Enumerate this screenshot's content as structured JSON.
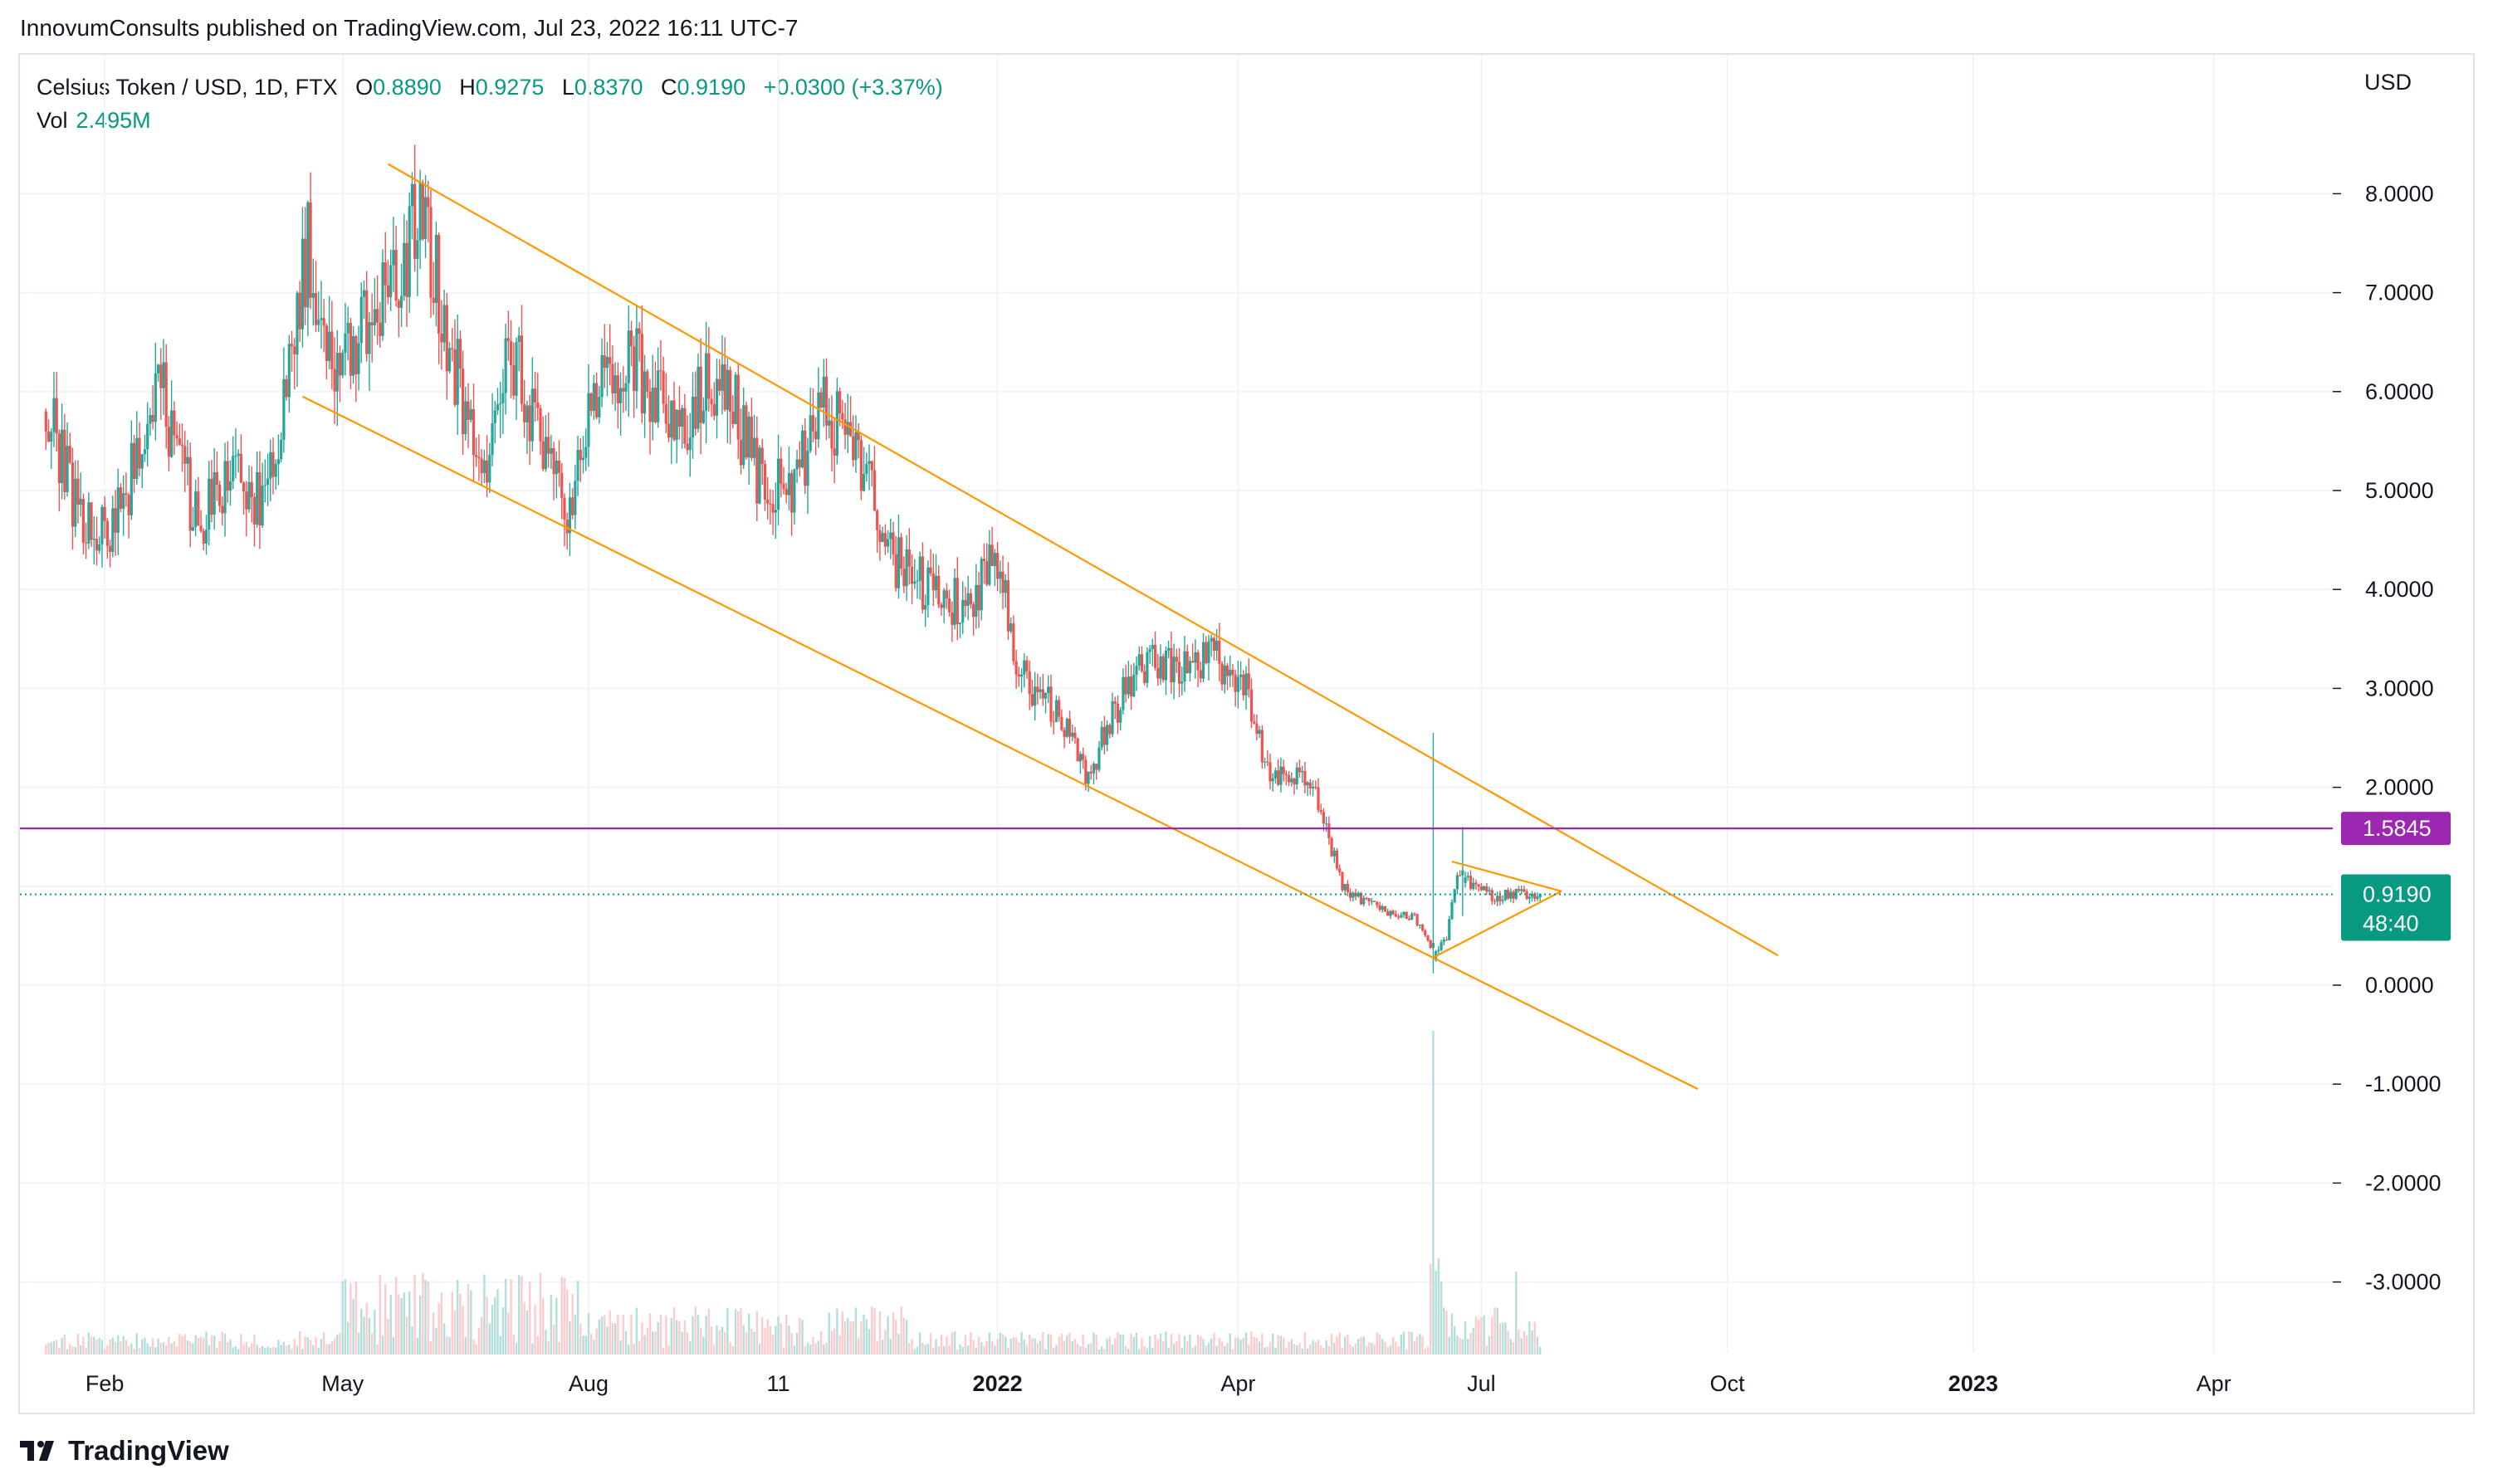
{
  "header": {
    "published_by": "InnovumConsults published on TradingView.com, Jul 23, 2022 16:11 UTC-7"
  },
  "legend": {
    "symbol": "Celsius Token / USD, 1D, FTX",
    "o_label": "O",
    "o": "0.8890",
    "h_label": "H",
    "h": "0.9275",
    "l_label": "L",
    "l": "0.8370",
    "c_label": "C",
    "c": "0.9190",
    "change": "+0.0300 (+3.37%)",
    "vol_label": "Vol",
    "vol": "2.495M"
  },
  "currency": "USD",
  "price_axis": [
    "8.0000",
    "7.0000",
    "6.0000",
    "5.0000",
    "4.0000",
    "3.0000",
    "2.0000",
    "0.0000",
    "-1.0000",
    "-2.0000",
    "-3.0000"
  ],
  "time_axis": [
    {
      "label": "Feb",
      "bold": false
    },
    {
      "label": "May",
      "bold": false
    },
    {
      "label": "Aug",
      "bold": false
    },
    {
      "label": "11",
      "bold": false
    },
    {
      "label": "2022",
      "bold": true
    },
    {
      "label": "Apr",
      "bold": false
    },
    {
      "label": "Jul",
      "bold": false
    },
    {
      "label": "Oct",
      "bold": false
    },
    {
      "label": "2023",
      "bold": true
    },
    {
      "label": "Apr",
      "bold": false
    }
  ],
  "badges": {
    "level": "1.5845",
    "last_price": "0.9190",
    "countdown": "48:40"
  },
  "colors": {
    "up": "#26a69a",
    "down": "#ef5350",
    "trendline": "#ff9800",
    "level": "#9c27b0",
    "badge_last": "#089981",
    "grid": "#f0f3fa"
  },
  "chart_data": {
    "type": "candlestick",
    "title": "Celsius Token / USD, 1D, FTX",
    "ylabel": "USD",
    "ylim": [
      -3.7,
      8.6
    ],
    "xlim": [
      "2021-01-04",
      "2023-04-30"
    ],
    "horizontal_level": 1.5845,
    "last_close": 0.919,
    "price_path": [
      {
        "date": "2021-01-10",
        "price": 5.8
      },
      {
        "date": "2021-01-22",
        "price": 4.8
      },
      {
        "date": "2021-02-01",
        "price": 4.5
      },
      {
        "date": "2021-02-12",
        "price": 5.2
      },
      {
        "date": "2021-02-22",
        "price": 6.0
      },
      {
        "date": "2021-03-08",
        "price": 4.6
      },
      {
        "date": "2021-03-20",
        "price": 5.2
      },
      {
        "date": "2021-04-01",
        "price": 4.8
      },
      {
        "date": "2021-04-10",
        "price": 6.0
      },
      {
        "date": "2021-04-18",
        "price": 7.5
      },
      {
        "date": "2021-04-28",
        "price": 6.2
      },
      {
        "date": "2021-05-06",
        "price": 6.6
      },
      {
        "date": "2021-05-18",
        "price": 6.9
      },
      {
        "date": "2021-05-30",
        "price": 7.8
      },
      {
        "date": "2021-06-10",
        "price": 6.5
      },
      {
        "date": "2021-06-22",
        "price": 5.0
      },
      {
        "date": "2021-07-02",
        "price": 6.6
      },
      {
        "date": "2021-07-12",
        "price": 5.6
      },
      {
        "date": "2021-07-24",
        "price": 4.8
      },
      {
        "date": "2021-08-04",
        "price": 6.0
      },
      {
        "date": "2021-08-18",
        "price": 6.3
      },
      {
        "date": "2021-09-04",
        "price": 5.6
      },
      {
        "date": "2021-09-20",
        "price": 6.2
      },
      {
        "date": "2021-10-04",
        "price": 5.1
      },
      {
        "date": "2021-10-16",
        "price": 5.0
      },
      {
        "date": "2021-10-28",
        "price": 5.8
      },
      {
        "date": "2021-11-08",
        "price": 5.6
      },
      {
        "date": "2021-11-22",
        "price": 4.3
      },
      {
        "date": "2021-12-06",
        "price": 4.0
      },
      {
        "date": "2021-12-20",
        "price": 3.8
      },
      {
        "date": "2022-01-01",
        "price": 4.3
      },
      {
        "date": "2022-01-08",
        "price": 3.2
      },
      {
        "date": "2022-01-22",
        "price": 2.8
      },
      {
        "date": "2022-02-04",
        "price": 2.1
      },
      {
        "date": "2022-02-14",
        "price": 2.8
      },
      {
        "date": "2022-02-26",
        "price": 3.3
      },
      {
        "date": "2022-03-12",
        "price": 3.2
      },
      {
        "date": "2022-03-24",
        "price": 3.3
      },
      {
        "date": "2022-04-04",
        "price": 3.0
      },
      {
        "date": "2022-04-12",
        "price": 2.2
      },
      {
        "date": "2022-04-28",
        "price": 2.1
      },
      {
        "date": "2022-05-10",
        "price": 1.0
      },
      {
        "date": "2022-05-24",
        "price": 0.75
      },
      {
        "date": "2022-06-06",
        "price": 0.7
      },
      {
        "date": "2022-06-13",
        "price": 0.3
      },
      {
        "date": "2022-06-18",
        "price": 0.5
      },
      {
        "date": "2022-06-22",
        "price": 1.1
      },
      {
        "date": "2022-07-04",
        "price": 0.9
      },
      {
        "date": "2022-07-23",
        "price": 0.919
      }
    ],
    "spikes": [
      {
        "date": "2022-06-13",
        "high": 2.55,
        "low": 0.12
      },
      {
        "date": "2022-06-24",
        "high": 1.6,
        "low": 0.7
      }
    ],
    "trendlines": [
      {
        "name": "channel-upper",
        "from": {
          "date": "2021-05-18",
          "price": 8.3
        },
        "to": {
          "date": "2022-10-20",
          "price": 0.3
        }
      },
      {
        "name": "channel-lower",
        "from": {
          "date": "2021-04-16",
          "price": 5.95
        },
        "to": {
          "date": "2022-09-20",
          "price": -1.05
        }
      },
      {
        "name": "triangle-upper",
        "from": {
          "date": "2022-06-20",
          "price": 1.25
        },
        "to": {
          "date": "2022-07-31",
          "price": 0.95
        }
      },
      {
        "name": "triangle-lower",
        "from": {
          "date": "2022-06-13",
          "price": 0.28
        },
        "to": {
          "date": "2022-07-31",
          "price": 0.95
        }
      }
    ]
  }
}
